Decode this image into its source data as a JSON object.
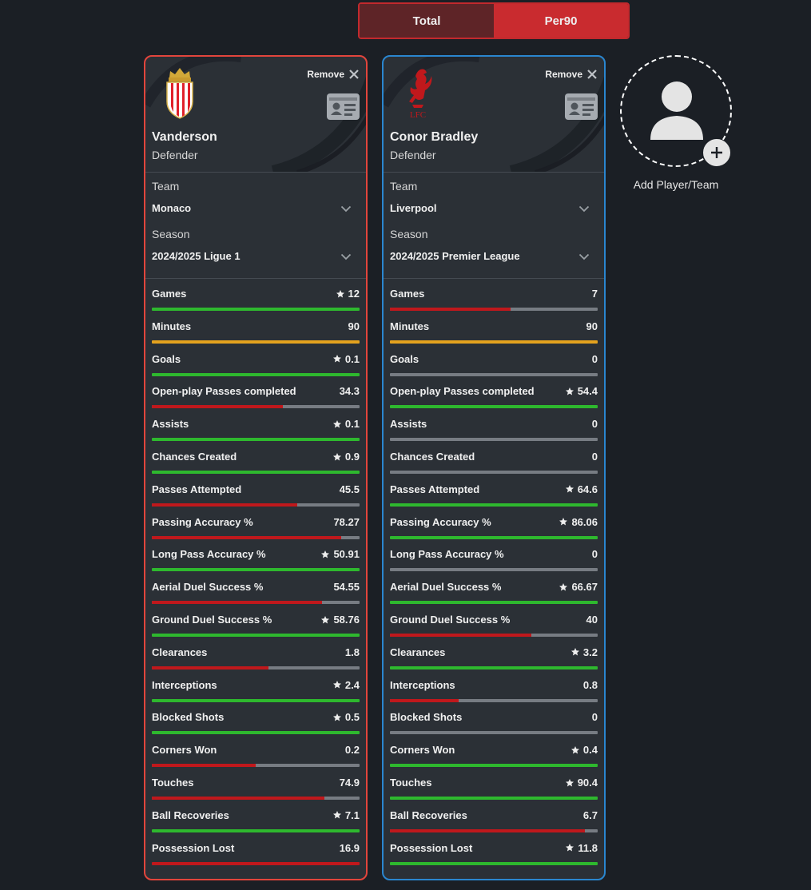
{
  "toggle": {
    "total_label": "Total",
    "per90_label": "Per90",
    "active": "per90"
  },
  "remove_label": "Remove",
  "selector_labels": {
    "team": "Team",
    "season": "Season"
  },
  "colors": {
    "good": "#2eb82e",
    "bad": "#c0181c",
    "mid": "#e4a21e",
    "card1_border": "#e2453c",
    "card2_border": "#2a86cf"
  },
  "players": [
    {
      "name": "Vanderson",
      "position": "Defender",
      "team": "Monaco",
      "season": "2024/2025 Ligue 1",
      "logo_icon": "monaco-crest-icon",
      "stats": [
        {
          "label": "Games",
          "value": "12",
          "star": true,
          "bar": 1.0,
          "status": "good"
        },
        {
          "label": "Minutes",
          "value": "90",
          "star": false,
          "bar": 1.0,
          "status": "mid"
        },
        {
          "label": "Goals",
          "value": "0.1",
          "star": true,
          "bar": 1.0,
          "status": "good"
        },
        {
          "label": "Open-play Passes completed",
          "value": "34.3",
          "star": false,
          "bar": 0.63,
          "status": "bad"
        },
        {
          "label": "Assists",
          "value": "0.1",
          "star": true,
          "bar": 1.0,
          "status": "good"
        },
        {
          "label": "Chances Created",
          "value": "0.9",
          "star": true,
          "bar": 1.0,
          "status": "good"
        },
        {
          "label": "Passes Attempted",
          "value": "45.5",
          "star": false,
          "bar": 0.7,
          "status": "bad"
        },
        {
          "label": "Passing Accuracy %",
          "value": "78.27",
          "star": false,
          "bar": 0.91,
          "status": "bad"
        },
        {
          "label": "Long Pass Accuracy %",
          "value": "50.91",
          "star": true,
          "bar": 1.0,
          "status": "good"
        },
        {
          "label": "Aerial Duel Success %",
          "value": "54.55",
          "star": false,
          "bar": 0.82,
          "status": "bad"
        },
        {
          "label": "Ground Duel Success %",
          "value": "58.76",
          "star": true,
          "bar": 1.0,
          "status": "good"
        },
        {
          "label": "Clearances",
          "value": "1.8",
          "star": false,
          "bar": 0.56,
          "status": "bad"
        },
        {
          "label": "Interceptions",
          "value": "2.4",
          "star": true,
          "bar": 1.0,
          "status": "good"
        },
        {
          "label": "Blocked Shots",
          "value": "0.5",
          "star": true,
          "bar": 1.0,
          "status": "good"
        },
        {
          "label": "Corners Won",
          "value": "0.2",
          "star": false,
          "bar": 0.5,
          "status": "bad"
        },
        {
          "label": "Touches",
          "value": "74.9",
          "star": false,
          "bar": 0.83,
          "status": "bad"
        },
        {
          "label": "Ball Recoveries",
          "value": "7.1",
          "star": true,
          "bar": 1.0,
          "status": "good"
        },
        {
          "label": "Possession Lost",
          "value": "16.9",
          "star": false,
          "bar": 1.0,
          "status": "bad"
        }
      ]
    },
    {
      "name": "Conor Bradley",
      "position": "Defender",
      "team": "Liverpool",
      "season": "2024/2025 Premier League",
      "logo_icon": "liverpool-liverbird-icon",
      "logo_text": "LFC",
      "stats": [
        {
          "label": "Games",
          "value": "7",
          "star": false,
          "bar": 0.58,
          "status": "bad"
        },
        {
          "label": "Minutes",
          "value": "90",
          "star": false,
          "bar": 1.0,
          "status": "mid"
        },
        {
          "label": "Goals",
          "value": "0",
          "star": false,
          "bar": 0.0,
          "status": "bad"
        },
        {
          "label": "Open-play Passes completed",
          "value": "54.4",
          "star": true,
          "bar": 1.0,
          "status": "good"
        },
        {
          "label": "Assists",
          "value": "0",
          "star": false,
          "bar": 0.0,
          "status": "bad"
        },
        {
          "label": "Chances Created",
          "value": "0",
          "star": false,
          "bar": 0.0,
          "status": "bad"
        },
        {
          "label": "Passes Attempted",
          "value": "64.6",
          "star": true,
          "bar": 1.0,
          "status": "good"
        },
        {
          "label": "Passing Accuracy %",
          "value": "86.06",
          "star": true,
          "bar": 1.0,
          "status": "good"
        },
        {
          "label": "Long Pass Accuracy %",
          "value": "0",
          "star": false,
          "bar": 0.0,
          "status": "bad"
        },
        {
          "label": "Aerial Duel Success %",
          "value": "66.67",
          "star": true,
          "bar": 1.0,
          "status": "good"
        },
        {
          "label": "Ground Duel Success %",
          "value": "40",
          "star": false,
          "bar": 0.68,
          "status": "bad"
        },
        {
          "label": "Clearances",
          "value": "3.2",
          "star": true,
          "bar": 1.0,
          "status": "good"
        },
        {
          "label": "Interceptions",
          "value": "0.8",
          "star": false,
          "bar": 0.33,
          "status": "bad"
        },
        {
          "label": "Blocked Shots",
          "value": "0",
          "star": false,
          "bar": 0.0,
          "status": "bad"
        },
        {
          "label": "Corners Won",
          "value": "0.4",
          "star": true,
          "bar": 1.0,
          "status": "good"
        },
        {
          "label": "Touches",
          "value": "90.4",
          "star": true,
          "bar": 1.0,
          "status": "good"
        },
        {
          "label": "Ball Recoveries",
          "value": "6.7",
          "star": false,
          "bar": 0.94,
          "status": "bad"
        },
        {
          "label": "Possession Lost",
          "value": "11.8",
          "star": true,
          "bar": 1.0,
          "status": "good"
        }
      ]
    }
  ],
  "add_player": {
    "label": "Add Player/Team",
    "icon": "add-person-icon"
  }
}
